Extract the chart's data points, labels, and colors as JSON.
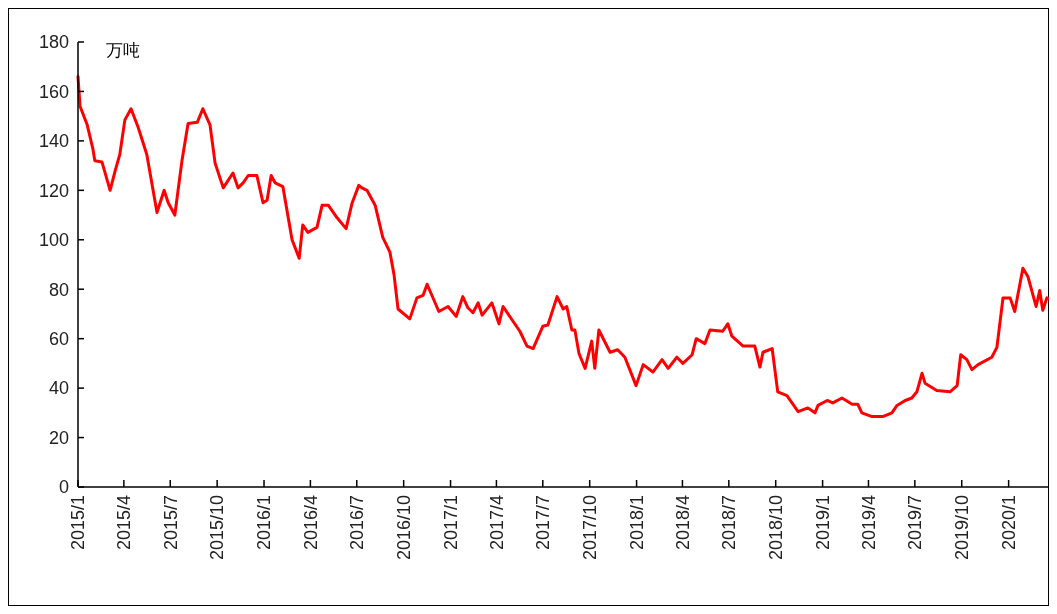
{
  "chart_data": {
    "type": "line",
    "ylabel": "万吨",
    "xlim": [
      "2015-01-01",
      "2020-04-01"
    ],
    "xticks": [
      {
        "value": "2015-01",
        "label": "2015/1"
      },
      {
        "value": "2015-04",
        "label": "2015/4"
      },
      {
        "value": "2015-07",
        "label": "2015/7"
      },
      {
        "value": "2015-10",
        "label": "2015/10"
      },
      {
        "value": "2016-01",
        "label": "2016/1"
      },
      {
        "value": "2016-04",
        "label": "2016/4"
      },
      {
        "value": "2016-07",
        "label": "2016/7"
      },
      {
        "value": "2016-10",
        "label": "2016/10"
      },
      {
        "value": "2017-01",
        "label": "2017/1"
      },
      {
        "value": "2017-04",
        "label": "2017/4"
      },
      {
        "value": "2017-07",
        "label": "2017/7"
      },
      {
        "value": "2017-10",
        "label": "2017/10"
      },
      {
        "value": "2018-01",
        "label": "2018/1"
      },
      {
        "value": "2018-04",
        "label": "2018/4"
      },
      {
        "value": "2018-07",
        "label": "2018/7"
      },
      {
        "value": "2018-10",
        "label": "2018/10"
      },
      {
        "value": "2019-01",
        "label": "2019/1"
      },
      {
        "value": "2019-04",
        "label": "2019/4"
      },
      {
        "value": "2019-07",
        "label": "2019/7"
      },
      {
        "value": "2019-10",
        "label": "2019/10"
      },
      {
        "value": "2020-01",
        "label": "2020/1"
      }
    ],
    "ylim": [
      0,
      180
    ],
    "yticks": [
      0,
      20,
      40,
      60,
      80,
      100,
      120,
      140,
      160,
      180
    ],
    "x": [
      "2015-01-01",
      "2015-01-05",
      "2015-01-19",
      "2015-01-30",
      "2015-02-03",
      "2015-02-17",
      "2015-03-05",
      "2015-03-15",
      "2015-03-24",
      "2015-04-03",
      "2015-04-15",
      "2015-04-29",
      "2015-05-16",
      "2015-06-05",
      "2015-06-19",
      "2015-06-27",
      "2015-07-10",
      "2015-07-24",
      "2015-08-05",
      "2015-08-23",
      "2015-09-03",
      "2015-09-17",
      "2015-09-27",
      "2015-10-13",
      "2015-11-01",
      "2015-11-11",
      "2015-11-21",
      "2015-12-01",
      "2015-12-18",
      "2015-12-30",
      "2016-01-07",
      "2016-01-15",
      "2016-01-23",
      "2016-02-07",
      "2016-02-25",
      "2016-03-10",
      "2016-03-17",
      "2016-03-27",
      "2016-04-14",
      "2016-04-24",
      "2016-05-06",
      "2016-05-23",
      "2016-06-10",
      "2016-06-22",
      "2016-07-05",
      "2016-07-11",
      "2016-07-21",
      "2016-08-06",
      "2016-08-21",
      "2016-09-04",
      "2016-09-12",
      "2016-09-20",
      "2016-10-13",
      "2016-10-27",
      "2016-11-08",
      "2016-11-16",
      "2016-12-09",
      "2016-12-27",
      "2017-01-12",
      "2017-01-25",
      "2017-02-04",
      "2017-02-14",
      "2017-02-24",
      "2017-03-04",
      "2017-03-23",
      "2017-04-06",
      "2017-04-14",
      "2017-05-17",
      "2017-05-31",
      "2017-06-12",
      "2017-07-01",
      "2017-07-11",
      "2017-07-29",
      "2017-08-10",
      "2017-08-17",
      "2017-08-27",
      "2017-09-02",
      "2017-09-10",
      "2017-09-22",
      "2017-10-05",
      "2017-10-11",
      "2017-10-19",
      "2017-11-10",
      "2017-11-25",
      "2017-12-09",
      "2017-12-31",
      "2018-01-14",
      "2018-02-02",
      "2018-02-20",
      "2018-03-04",
      "2018-03-21",
      "2018-04-02",
      "2018-04-20",
      "2018-04-28",
      "2018-05-15",
      "2018-05-25",
      "2018-06-19",
      "2018-06-29",
      "2018-07-07",
      "2018-07-29",
      "2018-08-21",
      "2018-08-31",
      "2018-09-06",
      "2018-09-24",
      "2018-10-05",
      "2018-10-23",
      "2018-11-14",
      "2018-12-03",
      "2018-12-17",
      "2018-12-23",
      "2019-01-10",
      "2019-01-21",
      "2019-02-08",
      "2019-02-28",
      "2019-03-11",
      "2019-03-19",
      "2019-04-08",
      "2019-04-29",
      "2019-05-17",
      "2019-05-27",
      "2019-06-12",
      "2019-06-25",
      "2019-07-05",
      "2019-07-15",
      "2019-07-21",
      "2019-08-13",
      "2019-09-08",
      "2019-09-22",
      "2019-09-29",
      "2019-10-11",
      "2019-10-21",
      "2019-11-02",
      "2019-11-29",
      "2019-12-09",
      "2019-12-21",
      "2020-01-04",
      "2020-01-13",
      "2020-01-29",
      "2020-02-08",
      "2020-02-24",
      "2020-03-02",
      "2020-03-08",
      "2020-03-16",
      "2020-03-26"
    ],
    "series": [
      {
        "color": "#ff0000",
        "values": [
          166,
          154,
          146.5,
          137,
          132,
          131.5,
          120,
          128,
          134.5,
          148.5,
          153,
          145.5,
          134.5,
          111,
          120,
          115,
          110,
          132,
          147,
          147.5,
          153,
          146.5,
          131,
          121,
          127,
          121,
          123,
          126,
          126,
          115,
          116,
          126,
          123,
          121.5,
          100,
          92.5,
          106,
          103,
          105,
          114,
          114,
          109,
          104.5,
          115,
          122,
          121,
          120,
          114,
          101,
          95,
          86,
          72,
          68,
          76.5,
          77.5,
          82,
          71,
          73,
          69,
          77,
          72.5,
          70.5,
          74.5,
          69.5,
          74.5,
          66,
          73,
          63,
          57,
          56,
          65,
          65.5,
          77,
          72,
          73,
          63.5,
          63.5,
          54,
          48,
          59,
          48,
          63.5,
          54.5,
          55.5,
          52.5,
          41,
          49.5,
          46.5,
          51.5,
          48,
          52.5,
          50,
          53.5,
          60,
          58,
          63.5,
          63,
          66,
          61,
          57,
          57,
          48.5,
          54.5,
          56,
          38.5,
          37,
          30.5,
          32,
          30,
          33,
          35,
          34,
          36,
          33.5,
          33.5,
          30,
          28.5,
          28.5,
          30,
          33,
          35,
          36,
          38.5,
          46,
          42,
          39,
          38.5,
          41,
          53.5,
          51.5,
          47.5,
          49.5,
          52.5,
          56.5,
          76.5,
          76.5,
          71,
          88.5,
          85,
          73,
          79.5,
          71.5,
          76.5,
          75.5
        ]
      }
    ]
  }
}
